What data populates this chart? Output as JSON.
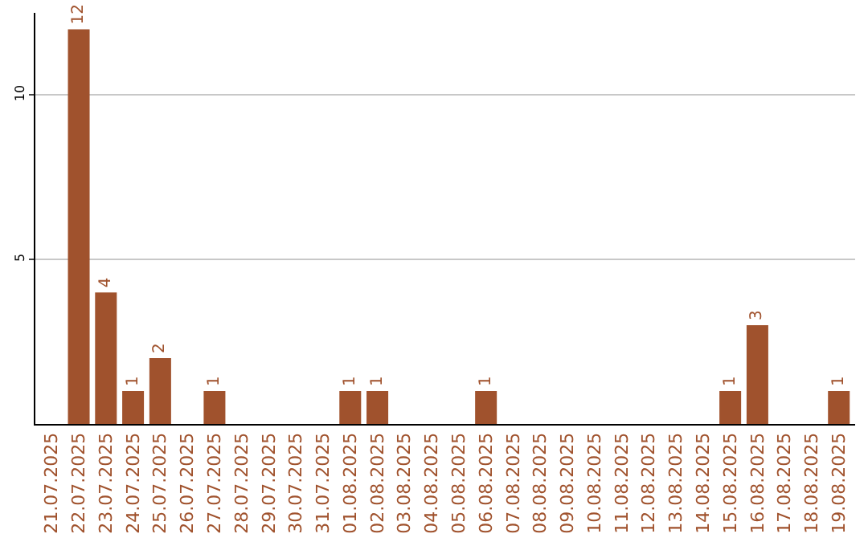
{
  "chart_data": {
    "type": "bar",
    "categories": [
      "21.07.2025",
      "22.07.2025",
      "23.07.2025",
      "24.07.2025",
      "25.07.2025",
      "26.07.2025",
      "27.07.2025",
      "28.07.2025",
      "29.07.2025",
      "30.07.2025",
      "31.07.2025",
      "01.08.2025",
      "02.08.2025",
      "03.08.2025",
      "04.08.2025",
      "05.08.2025",
      "06.08.2025",
      "07.08.2025",
      "08.08.2025",
      "09.08.2025",
      "10.08.2025",
      "11.08.2025",
      "12.08.2025",
      "13.08.2025",
      "14.08.2025",
      "15.08.2025",
      "16.08.2025",
      "17.08.2025",
      "18.08.2025",
      "19.08.2025"
    ],
    "values": [
      0,
      12,
      4,
      1,
      2,
      0,
      1,
      0,
      0,
      0,
      0,
      1,
      1,
      0,
      0,
      0,
      1,
      0,
      0,
      0,
      0,
      0,
      0,
      0,
      0,
      1,
      3,
      0,
      0,
      1
    ],
    "value_labels": [
      null,
      "12",
      "4",
      "1",
      "2",
      null,
      "1",
      null,
      null,
      null,
      null,
      "1",
      "1",
      null,
      null,
      null,
      "1",
      null,
      null,
      null,
      null,
      null,
      null,
      null,
      null,
      "1",
      "3",
      null,
      null,
      "1"
    ],
    "color": "#a0522d",
    "ylim": [
      0,
      12.5
    ],
    "yticks": [
      5,
      10
    ],
    "grid": "y"
  }
}
